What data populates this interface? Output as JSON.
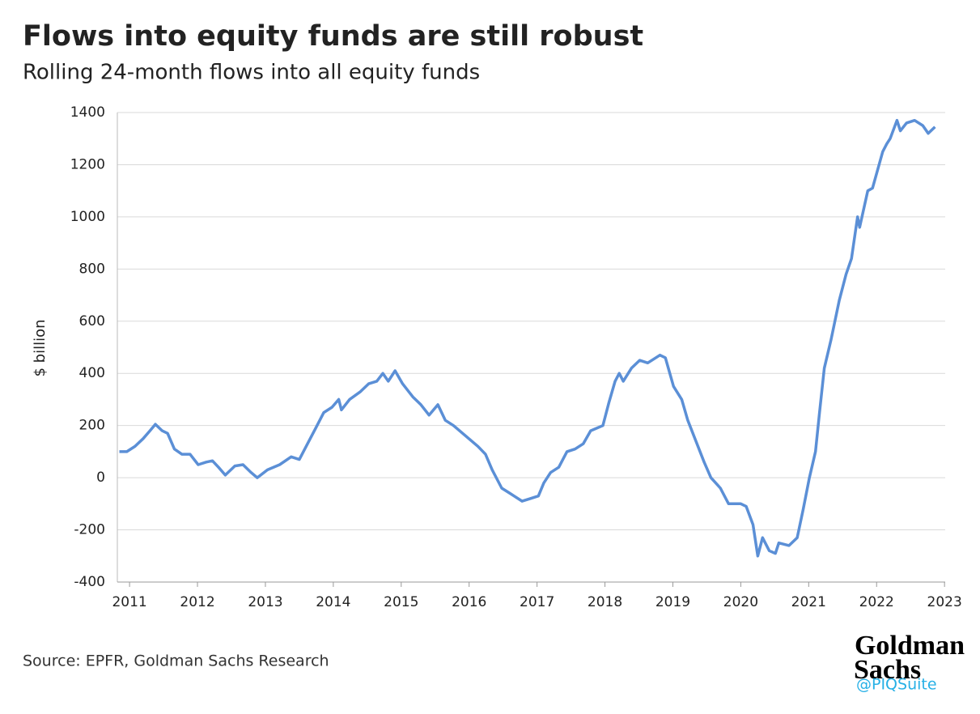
{
  "chart_data": {
    "type": "line",
    "title": "Flows into equity funds are still robust",
    "subtitle": "Rolling 24-month flows into all equity funds",
    "y_label": "$ billion",
    "source": "Source: EPFR, Goldman Sachs Research",
    "logo": [
      "Goldman",
      "Sachs"
    ],
    "watermark": "@PIQSuite",
    "xlim": [
      2010.82,
      2023.01
    ],
    "xticks": [
      2011,
      2012,
      2013,
      2014,
      2015,
      2016,
      2017,
      2018,
      2019,
      2020,
      2021,
      2022,
      2023
    ],
    "ylim": [
      -400,
      1400
    ],
    "yticks": [
      -400,
      -200,
      0,
      200,
      400,
      600,
      800,
      1000,
      1200,
      1400
    ],
    "grid": true,
    "series": [
      {
        "name": "Rolling 24-month flows",
        "color": "#5b8fd6",
        "x": [
          2010.85,
          2010.96,
          2011.08,
          2011.2,
          2011.3,
          2011.38,
          2011.48,
          2011.56,
          2011.66,
          2011.77,
          2011.89,
          2012.01,
          2012.13,
          2012.22,
          2012.31,
          2012.41,
          2012.55,
          2012.67,
          2012.79,
          2012.88,
          2013.03,
          2013.21,
          2013.38,
          2013.5,
          2013.62,
          2013.74,
          2013.86,
          2013.98,
          2014.08,
          2014.12,
          2014.24,
          2014.4,
          2014.52,
          2014.64,
          2014.73,
          2014.81,
          2014.91,
          2015.02,
          2015.17,
          2015.29,
          2015.41,
          2015.54,
          2015.65,
          2015.77,
          2015.95,
          2016.13,
          2016.24,
          2016.34,
          2016.48,
          2016.6,
          2016.78,
          2016.9,
          2017.02,
          2017.1,
          2017.2,
          2017.32,
          2017.44,
          2017.56,
          2017.68,
          2017.79,
          2017.97,
          2018.06,
          2018.15,
          2018.21,
          2018.27,
          2018.39,
          2018.51,
          2018.63,
          2018.81,
          2018.89,
          2019.01,
          2019.13,
          2019.22,
          2019.34,
          2019.46,
          2019.56,
          2019.7,
          2019.82,
          2020.0,
          2020.08,
          2020.18,
          2020.25,
          2020.32,
          2020.42,
          2020.51,
          2020.56,
          2020.71,
          2020.83,
          2020.92,
          2021.01,
          2021.1,
          2021.16,
          2021.23,
          2021.33,
          2021.45,
          2021.55,
          2021.63,
          2021.72,
          2021.75,
          2021.87,
          2021.94,
          2022.09,
          2022.15,
          2022.2,
          2022.3,
          2022.35,
          2022.44,
          2022.56,
          2022.68,
          2022.76,
          2022.86
        ],
        "values": [
          100,
          100,
          120,
          150,
          180,
          205,
          180,
          170,
          110,
          90,
          90,
          50,
          60,
          65,
          40,
          10,
          45,
          50,
          20,
          0,
          30,
          50,
          80,
          70,
          130,
          190,
          250,
          270,
          300,
          260,
          300,
          330,
          360,
          370,
          400,
          370,
          410,
          360,
          310,
          280,
          240,
          280,
          220,
          200,
          160,
          120,
          90,
          30,
          -40,
          -60,
          -90,
          -80,
          -70,
          -20,
          20,
          40,
          100,
          110,
          130,
          180,
          200,
          290,
          370,
          400,
          370,
          420,
          450,
          440,
          470,
          460,
          350,
          300,
          220,
          140,
          60,
          0,
          -40,
          -100,
          -100,
          -110,
          -180,
          -300,
          -230,
          -280,
          -290,
          -250,
          -260,
          -230,
          -120,
          0,
          100,
          250,
          420,
          530,
          680,
          780,
          840,
          1000,
          960,
          1100,
          1110,
          1250,
          1280,
          1300,
          1370,
          1330,
          1360,
          1370,
          1350,
          1320,
          1345
        ]
      }
    ]
  }
}
